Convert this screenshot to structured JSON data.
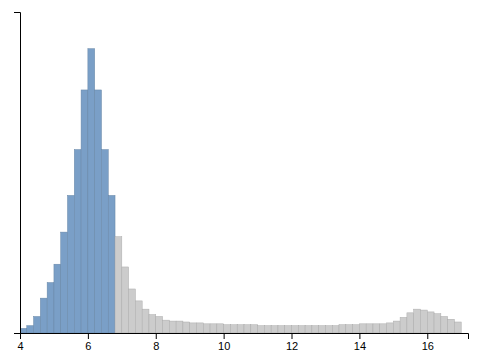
{
  "chart_data": {
    "type": "histogram",
    "bins": [
      4.0,
      4.2,
      4.4,
      4.6,
      4.8,
      5.0,
      5.2,
      5.4,
      5.6,
      5.8,
      6.0,
      6.2,
      6.4,
      6.6,
      6.8,
      7.0,
      7.2,
      7.4,
      7.6,
      7.8,
      8.0,
      8.2,
      8.4,
      8.6,
      8.8,
      9.0,
      9.2,
      9.4,
      9.6,
      9.8,
      10.0,
      10.2,
      10.4,
      10.6,
      10.8,
      11.0,
      11.2,
      11.4,
      11.6,
      11.8,
      12.0,
      12.2,
      12.4,
      12.6,
      12.8,
      13.0,
      13.2,
      13.4,
      13.6,
      13.8,
      14.0,
      14.2,
      14.4,
      14.6,
      14.8,
      15.0,
      15.2,
      15.4,
      15.6,
      15.8,
      16.0,
      16.2,
      16.4,
      16.6,
      16.8,
      17.0,
      17.2
    ],
    "values": [
      5,
      8,
      18,
      38,
      55,
      75,
      110,
      150,
      200,
      265,
      310,
      265,
      200,
      150,
      105,
      72,
      48,
      35,
      26,
      20,
      18,
      14,
      13,
      13,
      12,
      11,
      11,
      10,
      10,
      10,
      9,
      9,
      9,
      9,
      9,
      8,
      8,
      8,
      8,
      8,
      8,
      8,
      8,
      8,
      8,
      8,
      8,
      9,
      9,
      9,
      10,
      10,
      10,
      10,
      11,
      13,
      17,
      22,
      26,
      25,
      23,
      21,
      18,
      15,
      12,
      0
    ],
    "colors": [
      "#7a9fc7",
      "#7a9fc7",
      "#7a9fc7",
      "#7a9fc7",
      "#7a9fc7",
      "#7a9fc7",
      "#7a9fc7",
      "#7a9fc7",
      "#7a9fc7",
      "#7a9fc7",
      "#7a9fc7",
      "#7a9fc7",
      "#7a9fc7",
      "#7a9fc7",
      "#cccccc",
      "#cccccc",
      "#cccccc",
      "#cccccc",
      "#cccccc",
      "#cccccc",
      "#cccccc",
      "#cccccc",
      "#cccccc",
      "#cccccc",
      "#cccccc",
      "#cccccc",
      "#cccccc",
      "#cccccc",
      "#cccccc",
      "#cccccc",
      "#cccccc",
      "#cccccc",
      "#cccccc",
      "#cccccc",
      "#cccccc",
      "#cccccc",
      "#cccccc",
      "#cccccc",
      "#cccccc",
      "#cccccc",
      "#cccccc",
      "#cccccc",
      "#cccccc",
      "#cccccc",
      "#cccccc",
      "#cccccc",
      "#cccccc",
      "#cccccc",
      "#cccccc",
      "#cccccc",
      "#cccccc",
      "#cccccc",
      "#cccccc",
      "#cccccc",
      "#cccccc",
      "#cccccc",
      "#cccccc",
      "#cccccc",
      "#cccccc",
      "#cccccc",
      "#cccccc",
      "#cccccc",
      "#cccccc",
      "#cccccc",
      "#cccccc",
      "#cccccc"
    ],
    "xlim": [
      4.0,
      17.2
    ],
    "ylim": [
      0,
      350
    ],
    "xticks": [
      4,
      6,
      8,
      10,
      12,
      14,
      16
    ],
    "yticks": [],
    "tick_labels": "x",
    "grid": false
  }
}
